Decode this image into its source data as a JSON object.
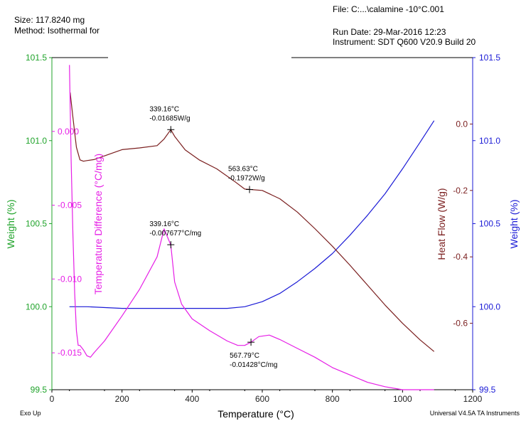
{
  "header": {
    "size": "Size:  117.8240 mg",
    "method": "Method: Isothermal for",
    "file": "File: C:...\\calamine -10°C.001",
    "run_date": "Run Date: 29-Mar-2016 12:23",
    "instrument": "Instrument:  SDT Q600 V20.9 Build 20"
  },
  "footer": {
    "exo": "Exo Up",
    "software": "Universal V4.5A TA Instruments"
  },
  "colors": {
    "weight_left": "#1fa32a",
    "weight_right": "#1a1ad6",
    "heat_flow": "#7a1e1e",
    "temp_diff": "#e61ee6",
    "axis": "#000000"
  },
  "chart_data": {
    "type": "line",
    "xlabel": "Temperature (°C)",
    "xlim": [
      0,
      1200
    ],
    "x_ticks": [
      "0",
      "200",
      "400",
      "600",
      "800",
      "1000",
      "1200"
    ],
    "grid": false,
    "axes": {
      "weight_left": {
        "label": "Weight (%)",
        "lim": [
          99.5,
          101.5
        ],
        "ticks": [
          "99.5",
          "100.0",
          "100.5",
          "101.0",
          "101.5"
        ]
      },
      "temp_diff": {
        "label": "Temperature Difference (°C/mg)",
        "lim": [
          -0.0175,
          0.005
        ],
        "ticks": [
          "0.000",
          "-0.005",
          "-0.010",
          "-0.015"
        ]
      },
      "heat_flow": {
        "label": "Heat Flow (W/g)",
        "lim": [
          -0.8,
          0.2
        ],
        "ticks": [
          "0.0",
          "-0.2",
          "-0.4",
          "-0.6"
        ]
      },
      "weight_right": {
        "label": "Weight (%)",
        "lim": [
          99.5,
          101.5
        ],
        "ticks": [
          "99.5",
          "100.0",
          "100.5",
          "101.0",
          "101.5"
        ]
      }
    },
    "series": [
      {
        "axis": "weight_right",
        "x": [
          50,
          100,
          200,
          300,
          400,
          500,
          550,
          600,
          650,
          700,
          750,
          800,
          850,
          900,
          950,
          1000,
          1050,
          1090
        ],
        "y": [
          100.0,
          100.0,
          99.99,
          99.99,
          99.99,
          99.99,
          100.0,
          100.03,
          100.08,
          100.15,
          100.23,
          100.32,
          100.43,
          100.55,
          100.68,
          100.83,
          100.99,
          101.12
        ]
      },
      {
        "axis": "heat_flow",
        "x": [
          52,
          60,
          70,
          80,
          90,
          100,
          120,
          150,
          200,
          250,
          300,
          320,
          339.16,
          350,
          380,
          420,
          470,
          520,
          550,
          563.63,
          600,
          650,
          700,
          750,
          800,
          850,
          900,
          950,
          1000,
          1050,
          1090
        ],
        "y": [
          0.095,
          0.02,
          -0.07,
          -0.108,
          -0.112,
          -0.11,
          -0.107,
          -0.096,
          -0.077,
          -0.072,
          -0.065,
          -0.045,
          -0.017,
          -0.037,
          -0.078,
          -0.108,
          -0.135,
          -0.172,
          -0.196,
          -0.197,
          -0.2,
          -0.225,
          -0.265,
          -0.315,
          -0.368,
          -0.425,
          -0.485,
          -0.545,
          -0.6,
          -0.65,
          -0.685
        ]
      },
      {
        "axis": "temp_diff",
        "x": [
          50,
          55,
          60,
          65,
          70,
          75,
          80,
          90,
          100,
          110,
          120,
          150,
          200,
          250,
          300,
          320,
          339.16,
          350,
          370,
          400,
          450,
          500,
          530,
          550,
          567.79,
          590,
          620,
          650,
          700,
          750,
          800,
          850,
          900,
          950,
          1000,
          1050,
          1090
        ],
        "y": [
          0.0045,
          -0.002,
          -0.007,
          -0.011,
          -0.0135,
          -0.0145,
          -0.0145,
          -0.0148,
          -0.0152,
          -0.0153,
          -0.015,
          -0.0142,
          -0.0125,
          -0.0107,
          -0.0085,
          -0.0066,
          -0.0077,
          -0.0102,
          -0.0117,
          -0.0127,
          -0.0135,
          -0.0142,
          -0.0145,
          -0.0145,
          -0.01428,
          -0.0139,
          -0.0138,
          -0.0141,
          -0.0147,
          -0.0153,
          -0.016,
          -0.0165,
          -0.017,
          -0.0173,
          -0.0175,
          -0.0175,
          -0.0175
        ]
      }
    ],
    "annotations": [
      {
        "axis": "heat_flow",
        "x": 339.16,
        "y": -0.01685,
        "lines": [
          "339.16°C",
          "-0.01685W/g"
        ],
        "placement": "above"
      },
      {
        "axis": "heat_flow",
        "x": 563.63,
        "y": -0.1972,
        "lines": [
          "563.63°C",
          "-0.1972W/g"
        ],
        "placement": "above"
      },
      {
        "axis": "temp_diff",
        "x": 339.16,
        "y": -0.007677,
        "lines": [
          "339.16°C",
          "-0.007677°C/mg"
        ],
        "placement": "above"
      },
      {
        "axis": "temp_diff",
        "x": 567.79,
        "y": -0.01428,
        "lines": [
          "567.79°C",
          "-0.01428°C/mg"
        ],
        "placement": "below"
      }
    ]
  }
}
